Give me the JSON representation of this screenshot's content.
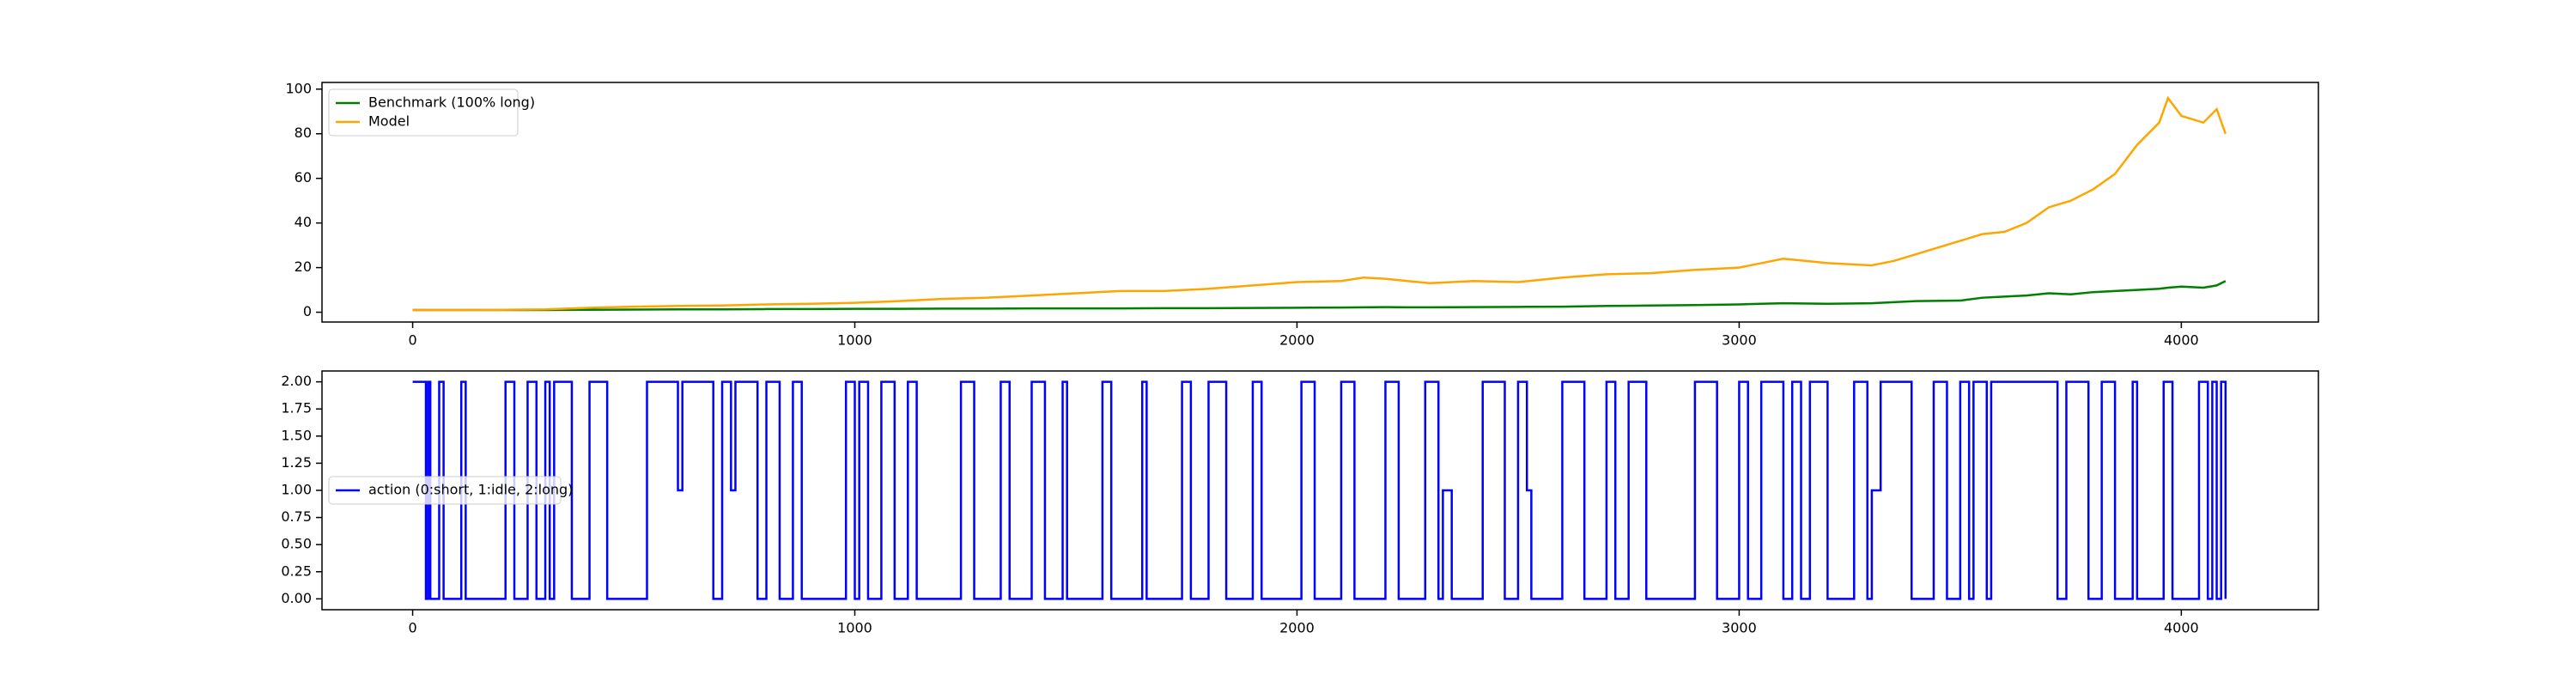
{
  "chart_data": [
    {
      "type": "line",
      "x": [
        0,
        100,
        200,
        300,
        400,
        500,
        600,
        700,
        800,
        900,
        1000,
        1100,
        1200,
        1300,
        1400,
        1500,
        1600,
        1700,
        1800,
        1900,
        2000,
        2100,
        2150,
        2200,
        2250,
        2300,
        2400,
        2500,
        2600,
        2700,
        2800,
        2900,
        3000,
        3050,
        3100,
        3200,
        3300,
        3350,
        3400,
        3500,
        3550,
        3600,
        3650,
        3700,
        3750,
        3800,
        3850,
        3900,
        3950,
        3970,
        4000,
        4050,
        4080,
        4100
      ],
      "series": [
        {
          "name": "Benchmark (100% long)",
          "color": "#008000",
          "values": [
            1,
            1,
            1,
            1,
            1.1,
            1.2,
            1.3,
            1.3,
            1.4,
            1.4,
            1.5,
            1.5,
            1.6,
            1.6,
            1.7,
            1.7,
            1.7,
            1.8,
            1.8,
            1.9,
            2,
            2.1,
            2.2,
            2.3,
            2.2,
            2.2,
            2.3,
            2.4,
            2.5,
            2.8,
            3,
            3.2,
            3.5,
            3.8,
            4,
            3.8,
            4,
            4.5,
            5,
            5.2,
            6.5,
            7,
            7.5,
            8.5,
            8,
            9,
            9.5,
            10,
            10.5,
            11,
            11.5,
            11,
            12,
            14
          ]
        },
        {
          "name": "Model",
          "color": "#ffa500",
          "values": [
            1,
            1,
            1.1,
            1.3,
            2,
            2.5,
            2.8,
            3,
            3.5,
            3.8,
            4.2,
            5,
            6,
            6.5,
            7.5,
            8.5,
            9.5,
            9.5,
            10.5,
            12,
            13.5,
            14,
            15.5,
            15,
            14,
            13,
            14,
            13.5,
            15.5,
            17,
            17.5,
            19,
            20,
            22,
            24,
            22,
            21,
            23,
            26,
            32,
            35,
            36,
            40,
            47,
            50,
            55,
            62,
            75,
            85,
            96,
            88,
            85,
            91,
            80
          ]
        }
      ],
      "xlim": [
        -205,
        4310
      ],
      "ylim": [
        -4.4,
        103
      ],
      "xticks": [
        0,
        1000,
        2000,
        3000,
        4000
      ],
      "yticks": [
        0,
        20,
        40,
        60,
        80,
        100
      ],
      "legend": "upper left"
    },
    {
      "type": "step",
      "x": [
        0,
        30,
        35,
        40,
        60,
        70,
        110,
        120,
        210,
        230,
        260,
        280,
        300,
        310,
        320,
        360,
        400,
        440,
        530,
        600,
        610,
        680,
        700,
        720,
        730,
        780,
        800,
        830,
        860,
        880,
        980,
        1000,
        1010,
        1030,
        1060,
        1090,
        1120,
        1140,
        1240,
        1270,
        1330,
        1350,
        1400,
        1430,
        1470,
        1480,
        1560,
        1580,
        1650,
        1660,
        1740,
        1760,
        1800,
        1840,
        1900,
        1920,
        2010,
        2040,
        2100,
        2130,
        2200,
        2230,
        2290,
        2320,
        2330,
        2350,
        2420,
        2470,
        2500,
        2520,
        2530,
        2600,
        2650,
        2700,
        2720,
        2750,
        2790,
        2900,
        2950,
        3000,
        3020,
        3050,
        3100,
        3120,
        3140,
        3160,
        3200,
        3260,
        3290,
        3300,
        3320,
        3390,
        3440,
        3470,
        3500,
        3520,
        3530,
        3560,
        3570,
        3720,
        3740,
        3790,
        3820,
        3850,
        3890,
        3900,
        3960,
        3980,
        4040,
        4060,
        4070,
        4080,
        4090,
        4100
      ],
      "series": [
        {
          "name": "action (0:short, 1:idle, 2:long)",
          "color": "#0000ff",
          "values": [
            2,
            0,
            2,
            0,
            2,
            0,
            2,
            0,
            2,
            0,
            2,
            0,
            2,
            0,
            2,
            0,
            2,
            0,
            2,
            1,
            2,
            0,
            2,
            1,
            2,
            0,
            2,
            0,
            2,
            0,
            2,
            0,
            2,
            0,
            2,
            0,
            2,
            0,
            2,
            0,
            2,
            0,
            2,
            0,
            2,
            0,
            2,
            0,
            2,
            0,
            2,
            0,
            2,
            0,
            2,
            0,
            2,
            0,
            2,
            0,
            2,
            0,
            2,
            0,
            1,
            0,
            2,
            0,
            2,
            1,
            0,
            2,
            0,
            2,
            0,
            2,
            0,
            2,
            0,
            2,
            0,
            2,
            0,
            2,
            0,
            2,
            0,
            2,
            0,
            1,
            2,
            0,
            2,
            0,
            2,
            0,
            2,
            0,
            2,
            0,
            2,
            0,
            2,
            0,
            2,
            0,
            2,
            0,
            2,
            0,
            2,
            0,
            2,
            0
          ]
        }
      ],
      "xlim": [
        -205,
        4310
      ],
      "ylim": [
        -0.1,
        2.1
      ],
      "xticks": [
        0,
        1000,
        2000,
        3000,
        4000
      ],
      "yticks": [
        {
          "value": 0,
          "label": "0.00"
        },
        {
          "value": 0.25,
          "label": "0.25"
        },
        {
          "value": 0.5,
          "label": "0.50"
        },
        {
          "value": 0.75,
          "label": "0.75"
        },
        {
          "value": 1,
          "label": "1.00"
        },
        {
          "value": 1.25,
          "label": "1.25"
        },
        {
          "value": 1.5,
          "label": "1.50"
        },
        {
          "value": 1.75,
          "label": "1.75"
        },
        {
          "value": 2,
          "label": "2.00"
        }
      ],
      "legend": "center left"
    }
  ]
}
